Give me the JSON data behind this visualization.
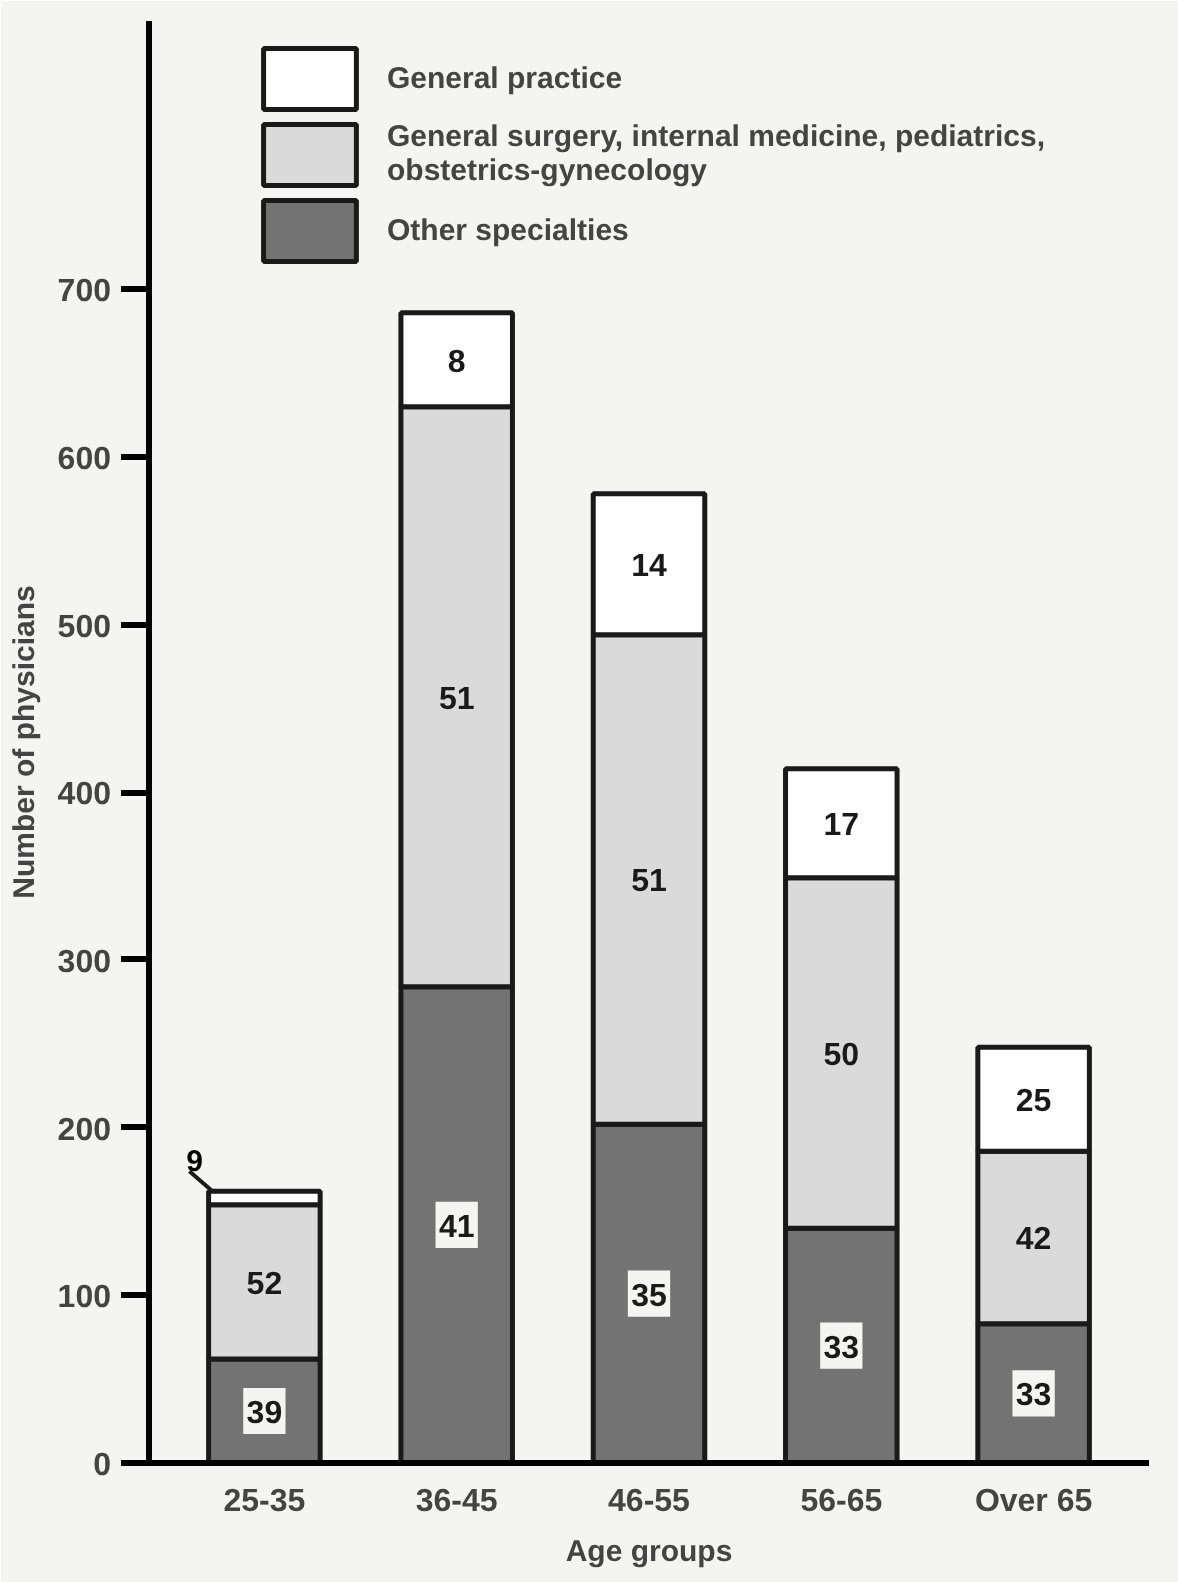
{
  "chart_data": {
    "type": "bar",
    "stacked": true,
    "xlabel": "Age groups",
    "ylabel": "Number of physicians",
    "categories": [
      "25-35",
      "36-45",
      "46-55",
      "56-65",
      "Over 65"
    ],
    "series": [
      {
        "name": "Other specialties",
        "color": "#737373",
        "values": [
          62,
          284,
          202,
          140,
          83
        ]
      },
      {
        "name": "General surgery, internal medicine, pediatrics, obstetrics-gynecology",
        "color": "#dadada",
        "values": [
          92,
          346,
          292,
          209,
          103
        ]
      },
      {
        "name": "General practice",
        "color": "#ffffff",
        "values": [
          8,
          56,
          84,
          65,
          62
        ]
      }
    ],
    "annotations": [
      "39",
      "52",
      "9",
      "41",
      "51",
      "8",
      "35",
      "51",
      "14",
      "33",
      "50",
      "17",
      "33",
      "42",
      "25"
    ],
    "ylim": [
      0,
      860
    ],
    "yticks": [
      0,
      100,
      200,
      300,
      400,
      500,
      600,
      700
    ],
    "legend": "top"
  }
}
